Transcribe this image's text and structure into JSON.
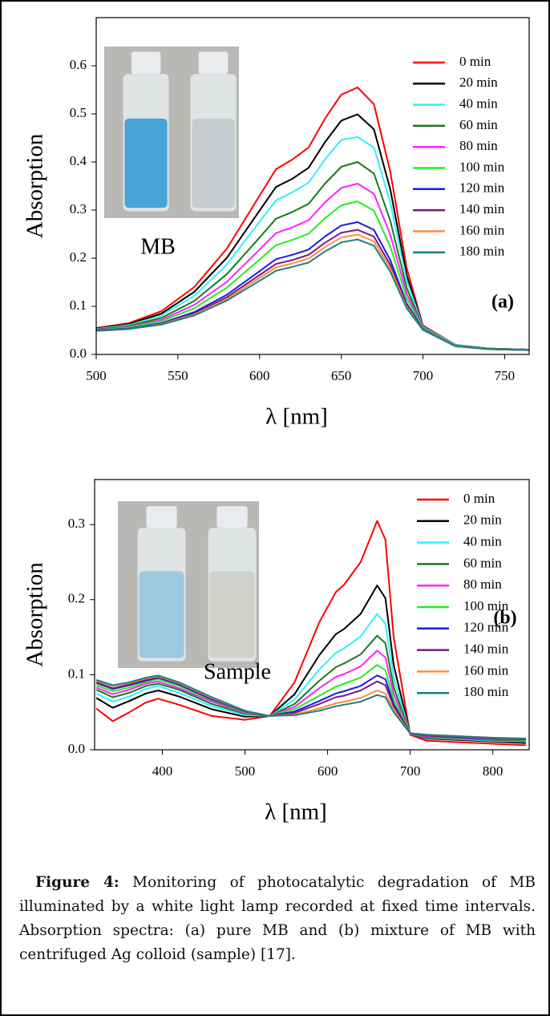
{
  "chart_data": [
    {
      "type": "line",
      "xlabel": "λ [nm]",
      "ylabel": "Absorption",
      "panel_label": "(a)",
      "inset_label": "MB",
      "x": [
        500,
        520,
        540,
        560,
        580,
        600,
        610,
        620,
        630,
        640,
        650,
        660,
        670,
        680,
        690,
        700,
        720,
        740,
        765
      ],
      "xlim": [
        500,
        765
      ],
      "xticks": [
        500,
        550,
        600,
        650,
        700,
        750
      ],
      "ylim": [
        0,
        0.7
      ],
      "yticks": [
        {
          "value": 0,
          "label": "0.0"
        },
        0.1,
        0.2,
        0.3,
        0.4,
        0.5,
        0.6
      ],
      "grid": false,
      "legend": "upper right",
      "series": [
        {
          "name": "0 min",
          "color": "#ff0000",
          "values": [
            0.055,
            0.065,
            0.09,
            0.14,
            0.22,
            0.33,
            0.385,
            0.405,
            0.43,
            0.49,
            0.54,
            0.555,
            0.52,
            0.38,
            0.18,
            0.06,
            0.02,
            0.012,
            0.01
          ]
        },
        {
          "name": "20 min",
          "color": "#000000",
          "values": [
            0.054,
            0.063,
            0.085,
            0.13,
            0.201,
            0.299,
            0.348,
            0.365,
            0.388,
            0.441,
            0.486,
            0.499,
            0.468,
            0.343,
            0.165,
            0.058,
            0.02,
            0.012,
            0.01
          ]
        },
        {
          "name": "40 min",
          "color": "#33eeff",
          "values": [
            0.053,
            0.061,
            0.081,
            0.122,
            0.187,
            0.276,
            0.32,
            0.337,
            0.357,
            0.405,
            0.446,
            0.452,
            0.43,
            0.316,
            0.154,
            0.057,
            0.02,
            0.012,
            0.01
          ]
        },
        {
          "name": "60 min",
          "color": "#1a7a1a",
          "values": [
            0.052,
            0.059,
            0.076,
            0.111,
            0.167,
            0.243,
            0.282,
            0.296,
            0.313,
            0.355,
            0.39,
            0.4,
            0.376,
            0.278,
            0.139,
            0.055,
            0.019,
            0.012,
            0.01
          ]
        },
        {
          "name": "80 min",
          "color": "#ff22ff",
          "values": [
            0.051,
            0.057,
            0.072,
            0.103,
            0.151,
            0.218,
            0.252,
            0.264,
            0.279,
            0.316,
            0.346,
            0.355,
            0.334,
            0.249,
            0.127,
            0.054,
            0.019,
            0.011,
            0.01
          ]
        },
        {
          "name": "100 min",
          "color": "#22ee22",
          "values": [
            0.05,
            0.056,
            0.069,
            0.096,
            0.139,
            0.197,
            0.227,
            0.238,
            0.251,
            0.283,
            0.31,
            0.318,
            0.299,
            0.224,
            0.117,
            0.053,
            0.018,
            0.011,
            0.009
          ]
        },
        {
          "name": "120 min",
          "color": "#1a1aee",
          "values": [
            0.05,
            0.054,
            0.065,
            0.088,
            0.124,
            0.173,
            0.198,
            0.207,
            0.218,
            0.245,
            0.268,
            0.275,
            0.259,
            0.196,
            0.106,
            0.052,
            0.017,
            0.011,
            0.009
          ]
        },
        {
          "name": "140 min",
          "color": "#7a1a7a",
          "values": [
            0.049,
            0.053,
            0.064,
            0.085,
            0.119,
            0.165,
            0.188,
            0.196,
            0.207,
            0.232,
            0.253,
            0.259,
            0.245,
            0.186,
            0.102,
            0.051,
            0.017,
            0.011,
            0.009
          ]
        },
        {
          "name": "160 min",
          "color": "#ff8c40",
          "values": [
            0.049,
            0.053,
            0.063,
            0.083,
            0.115,
            0.159,
            0.181,
            0.189,
            0.199,
            0.223,
            0.243,
            0.249,
            0.235,
            0.179,
            0.099,
            0.051,
            0.017,
            0.011,
            0.009
          ]
        },
        {
          "name": "180 min",
          "color": "#1a8080",
          "values": [
            0.049,
            0.053,
            0.062,
            0.081,
            0.112,
            0.153,
            0.174,
            0.182,
            0.191,
            0.214,
            0.233,
            0.239,
            0.226,
            0.172,
            0.096,
            0.051,
            0.017,
            0.011,
            0.009
          ]
        }
      ]
    },
    {
      "type": "line",
      "xlabel": "λ [nm]",
      "ylabel": "Absorption",
      "panel_label": "(b)",
      "inset_label": "Sample",
      "x": [
        320,
        340,
        360,
        380,
        395,
        420,
        460,
        500,
        530,
        560,
        590,
        610,
        620,
        640,
        660,
        670,
        680,
        700,
        720,
        800,
        840
      ],
      "xlim": [
        318,
        844
      ],
      "xticks": [
        400,
        500,
        600,
        700,
        800
      ],
      "ylim": [
        0,
        0.36
      ],
      "yticks": [
        {
          "value": 0,
          "label": "0.0"
        },
        0.1,
        0.2,
        0.3
      ],
      "grid": false,
      "legend": "upper right",
      "series": [
        {
          "name": "0 min",
          "color": "#ff0000",
          "values": [
            0.055,
            0.038,
            0.05,
            0.063,
            0.068,
            0.06,
            0.045,
            0.04,
            0.045,
            0.09,
            0.17,
            0.21,
            0.22,
            0.25,
            0.305,
            0.28,
            0.15,
            0.02,
            0.012,
            0.008,
            0.006
          ]
        },
        {
          "name": "20 min",
          "color": "#000000",
          "values": [
            0.069,
            0.056,
            0.065,
            0.075,
            0.079,
            0.071,
            0.054,
            0.044,
            0.045,
            0.074,
            0.126,
            0.154,
            0.161,
            0.181,
            0.219,
            0.202,
            0.113,
            0.021,
            0.015,
            0.011,
            0.009
          ]
        },
        {
          "name": "40 min",
          "color": "#33eeff",
          "values": [
            0.075,
            0.064,
            0.071,
            0.081,
            0.085,
            0.076,
            0.058,
            0.046,
            0.045,
            0.067,
            0.107,
            0.129,
            0.135,
            0.151,
            0.181,
            0.168,
            0.097,
            0.021,
            0.016,
            0.012,
            0.011
          ]
        },
        {
          "name": "60 min",
          "color": "#1a7a1a",
          "values": [
            0.08,
            0.07,
            0.076,
            0.085,
            0.088,
            0.08,
            0.061,
            0.048,
            0.045,
            0.061,
            0.092,
            0.11,
            0.115,
            0.127,
            0.152,
            0.142,
            0.084,
            0.021,
            0.017,
            0.013,
            0.012
          ]
        },
        {
          "name": "80 min",
          "color": "#ff22ff",
          "values": [
            0.083,
            0.074,
            0.08,
            0.088,
            0.091,
            0.082,
            0.064,
            0.049,
            0.045,
            0.057,
            0.082,
            0.097,
            0.101,
            0.111,
            0.132,
            0.123,
            0.075,
            0.021,
            0.018,
            0.014,
            0.013
          ]
        },
        {
          "name": "100 min",
          "color": "#22ee22",
          "values": [
            0.086,
            0.078,
            0.083,
            0.09,
            0.094,
            0.085,
            0.066,
            0.05,
            0.045,
            0.054,
            0.072,
            0.084,
            0.088,
            0.096,
            0.113,
            0.106,
            0.067,
            0.022,
            0.019,
            0.015,
            0.013
          ]
        },
        {
          "name": "120 min",
          "color": "#1a1aee",
          "values": [
            0.089,
            0.081,
            0.086,
            0.092,
            0.096,
            0.087,
            0.067,
            0.051,
            0.045,
            0.051,
            0.065,
            0.075,
            0.078,
            0.085,
            0.099,
            0.094,
            0.061,
            0.022,
            0.019,
            0.015,
            0.014
          ]
        },
        {
          "name": "140 min",
          "color": "#7a1a7a",
          "values": [
            0.09,
            0.082,
            0.087,
            0.093,
            0.097,
            0.088,
            0.068,
            0.051,
            0.045,
            0.049,
            0.061,
            0.07,
            0.072,
            0.079,
            0.091,
            0.086,
            0.058,
            0.022,
            0.019,
            0.015,
            0.014
          ]
        },
        {
          "name": "160 min",
          "color": "#ff8c40",
          "values": [
            0.092,
            0.085,
            0.089,
            0.095,
            0.098,
            0.089,
            0.069,
            0.052,
            0.045,
            0.047,
            0.055,
            0.062,
            0.064,
            0.069,
            0.079,
            0.075,
            0.053,
            0.022,
            0.02,
            0.016,
            0.015
          ]
        },
        {
          "name": "180 min",
          "color": "#1a8080",
          "values": [
            0.093,
            0.086,
            0.09,
            0.096,
            0.099,
            0.09,
            0.07,
            0.052,
            0.045,
            0.046,
            0.052,
            0.058,
            0.06,
            0.064,
            0.073,
            0.07,
            0.05,
            0.022,
            0.02,
            0.016,
            0.015
          ]
        }
      ]
    }
  ],
  "caption": {
    "label": "Figure 4:",
    "text": "Monitoring of photocatalytic degradation of MB illuminated by a white light lamp recorded at fixed time intervals. Absorption spectra: (a) pure MB and (b) mixture of MB with centrifuged Ag colloid (sample) [17]."
  }
}
